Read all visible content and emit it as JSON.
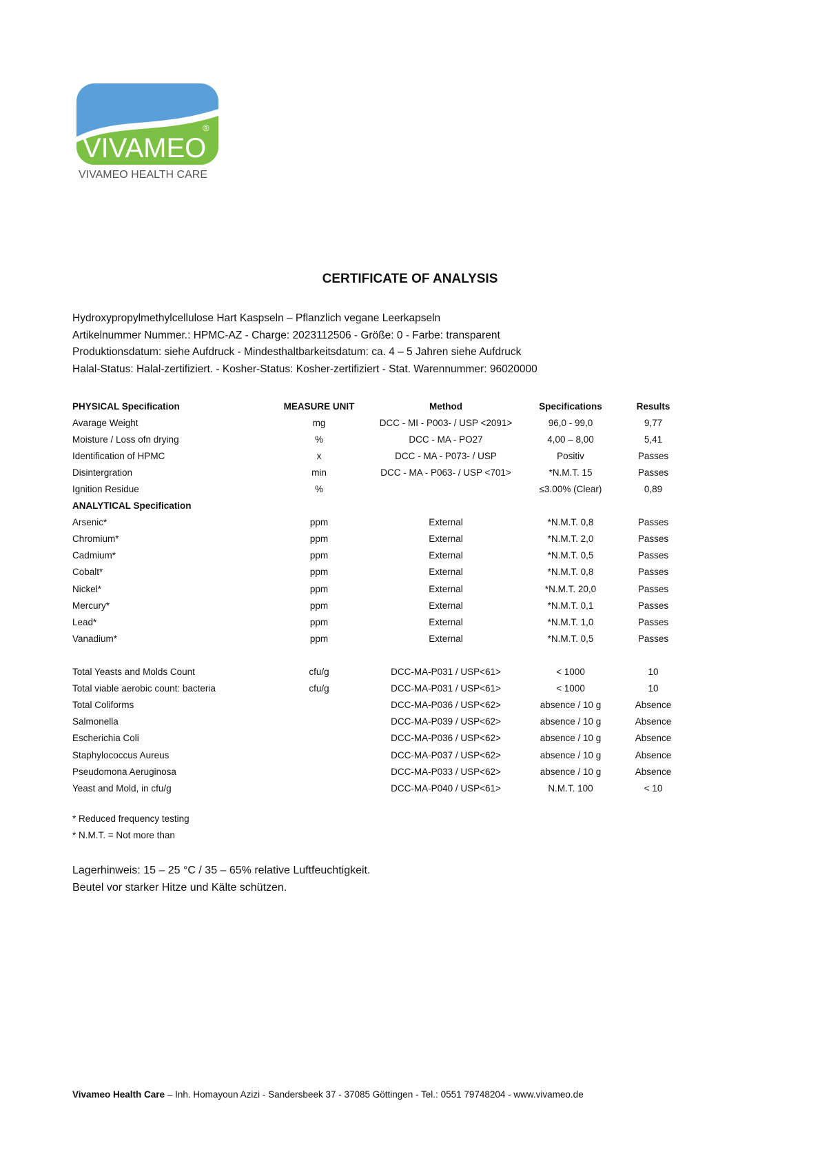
{
  "logo": {
    "brand": "VIVAMEO",
    "tagline": "VIVAMEO HEALTH CARE",
    "colors": {
      "blue": "#5b9fd9",
      "green": "#7cc143",
      "text_gray": "#555555"
    }
  },
  "title": "CERTIFICATE OF ANALYSIS",
  "info_lines": [
    "Hydroxypropylmethylcellulose Hart Kaspseln – Pflanzlich vegane Leerkapseln",
    "Artikelnummer Nummer.:  HPMC-AZ - Charge: 2023112506 - Größe: 0 - Farbe: transparent",
    "Produktionsdatum: siehe Aufdruck - Mindesthaltbarkeitsdatum:  ca. 4 – 5 Jahren  siehe Aufdruck",
    "Halal-Status: Halal-zertifiziert. - Kosher-Status: Kosher-zertifiziert - Stat. Warennummer: 96020000"
  ],
  "table": {
    "headers": [
      "PHYSICAL Specification",
      "MEASURE UNIT",
      "Method",
      "Specifications",
      "Results"
    ],
    "rows": [
      [
        "Avarage Weight",
        "mg",
        "DCC - MI - P003- / USP <2091>",
        "96,0 - 99,0",
        "9,77"
      ],
      [
        "Moisture / Loss ofn drying",
        "%",
        "DCC - MA - PO27",
        "4,00 – 8,00",
        "5,41"
      ],
      [
        "Identification of HPMC",
        "x",
        "DCC - MA - P073- / USP",
        "Positiv",
        "Passes"
      ],
      [
        "Disintergration",
        "min",
        "DCC - MA - P063- / USP <701>",
        "*N.M.T. 15",
        "Passes"
      ],
      [
        "Ignition Residue",
        "%",
        "",
        "≤3.00% (Clear)",
        "0,89"
      ],
      [
        "ANALYTICAL Specification",
        "",
        "",
        "",
        ""
      ],
      [
        "Arsenic*",
        "ppm",
        "External",
        "*N.M.T. 0,8",
        "Passes"
      ],
      [
        "Chromium*",
        "ppm",
        "External",
        "*N.M.T. 2,0",
        "Passes"
      ],
      [
        "Cadmium*",
        "ppm",
        "External",
        "*N.M.T. 0,5",
        "Passes"
      ],
      [
        "Cobalt*",
        "ppm",
        "External",
        "*N.M.T. 0,8",
        "Passes"
      ],
      [
        "Nickel*",
        "ppm",
        "External",
        "*N.M.T. 20,0",
        "Passes"
      ],
      [
        "Mercury*",
        "ppm",
        "External",
        "*N.M.T. 0,1",
        "Passes"
      ],
      [
        "Lead*",
        "ppm",
        "External",
        "*N.M.T. 1,0",
        "Passes"
      ],
      [
        "Vanadium*",
        "ppm",
        "External",
        "*N.M.T. 0,5",
        "Passes"
      ],
      [
        "",
        "",
        "",
        "",
        ""
      ],
      [
        "Total Yeasts and Molds Count",
        "cfu/g",
        "DCC-MA-P031 / USP<61>",
        "< 1000",
        "10"
      ],
      [
        "Total viable aerobic count: bacteria",
        "cfu/g",
        "DCC-MA-P031 / USP<61>",
        "< 1000",
        "10"
      ],
      [
        "Total Coliforms",
        "",
        "DCC-MA-P036 / USP<62>",
        "absence / 10 g",
        "Absence"
      ],
      [
        "Salmonella",
        "",
        "DCC-MA-P039 / USP<62>",
        "absence / 10 g",
        "Absence"
      ],
      [
        "Escherichia Coli",
        "",
        "DCC-MA-P036 / USP<62>",
        "absence / 10 g",
        "Absence"
      ],
      [
        "Staphylococcus Aureus",
        "",
        "DCC-MA-P037 / USP<62>",
        "absence / 10 g",
        "Absence"
      ],
      [
        "Pseudomona Aeruginosa",
        "",
        "DCC-MA-P033 / USP<62>",
        "absence / 10 g",
        "Absence"
      ],
      [
        "Yeast and Mold, in cfu/g",
        "",
        "DCC-MA-P040 / USP<61>",
        "N.M.T. 100",
        "< 10"
      ]
    ]
  },
  "notes": [
    "* Reduced frequency testing",
    "* N.M.T. = Not more than"
  ],
  "storage": [
    "Lagerhinweis: 15 – 25 °C / 35 – 65% relative Luftfeuchtigkeit.",
    "Beutel vor starker Hitze und Kälte schützen."
  ],
  "footer": {
    "company": "Vivameo Health Care",
    "details": " – Inh. Homayoun Azizi - Sandersbeek 37 - 37085 Göttingen - Tel.: 0551 79748204 - www.vivameo.de"
  }
}
